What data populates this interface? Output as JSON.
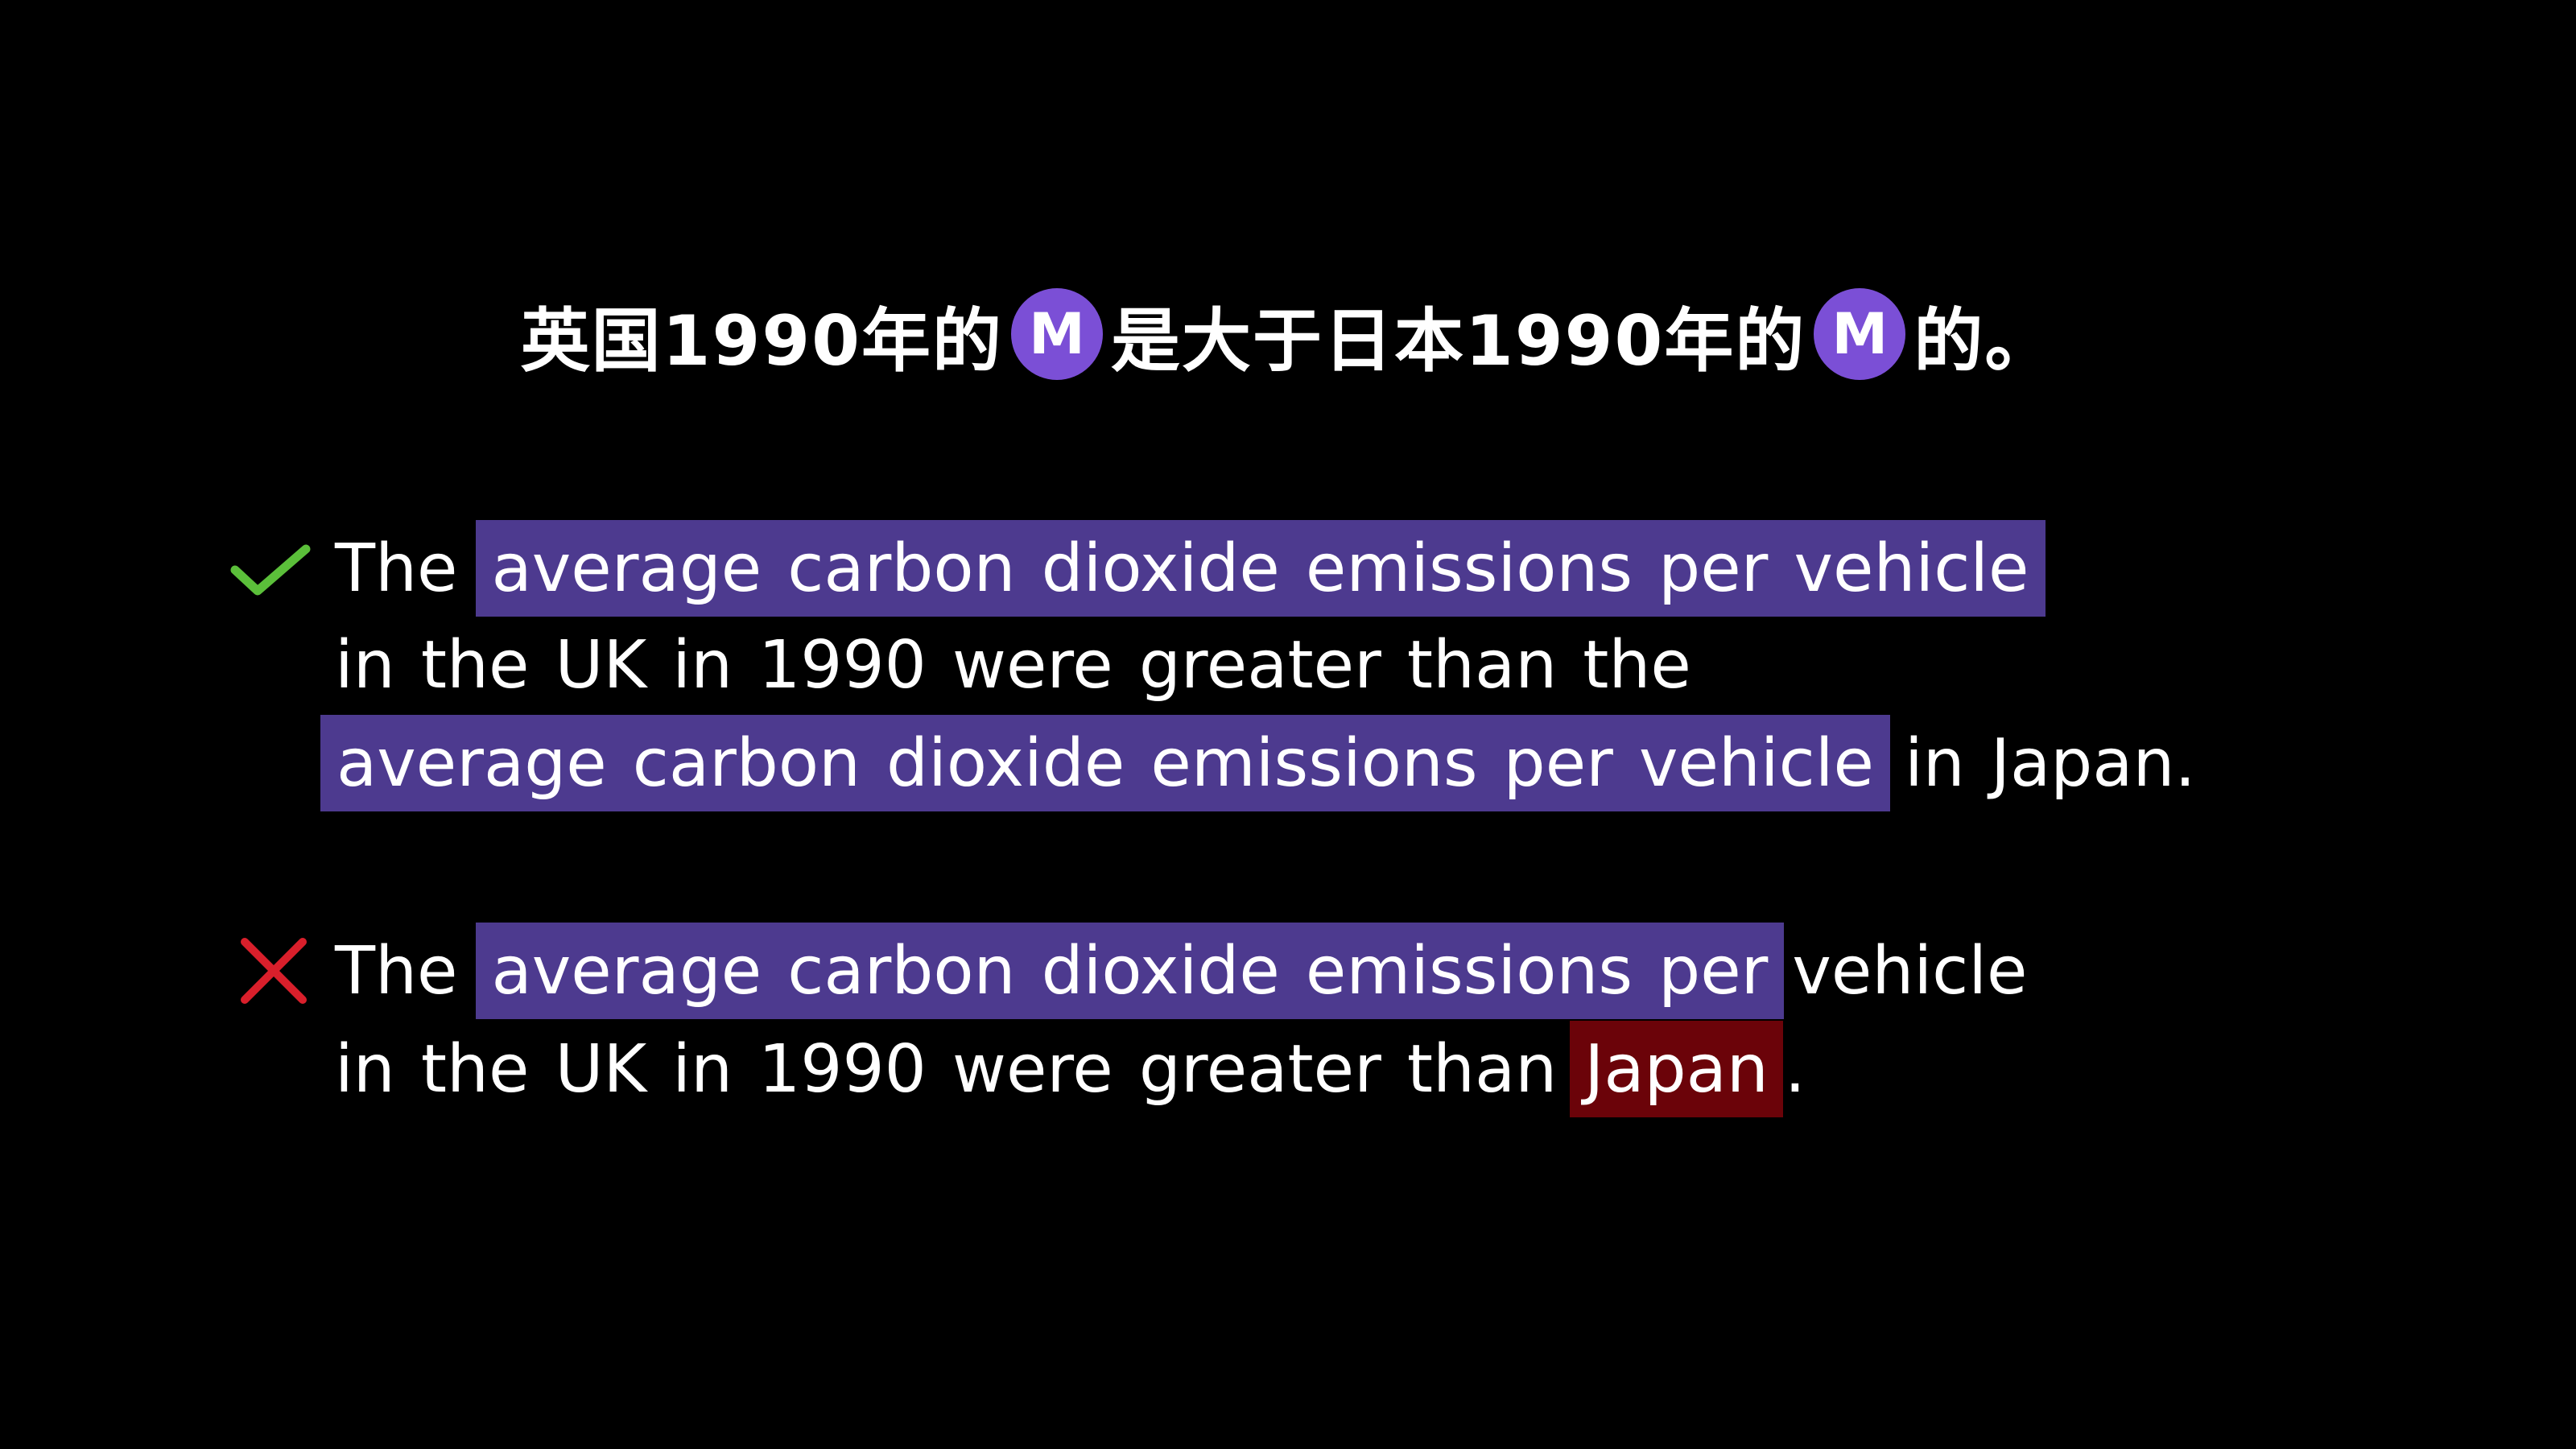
{
  "colors": {
    "background": "#000000",
    "text": "#ffffff",
    "badge": "#7b4fd6",
    "highlight": "#4d3a8f",
    "error_highlight": "#6b0309",
    "check": "#5bbf3a",
    "cross": "#d91f2b"
  },
  "title": {
    "part1": "英国1990年的",
    "badge1": "M",
    "part2": "是大于日本1990年的",
    "badge2": "M",
    "part3": "的。"
  },
  "correct_example": {
    "icon": "check-icon",
    "line1_prefix": "The",
    "line1_highlight": "average carbon dioxide emissions per vehicle",
    "line2": "in the UK in 1990 were greater than the",
    "line3_highlight": "average carbon dioxide emissions per vehicle",
    "line3_suffix": "in Japan."
  },
  "incorrect_example": {
    "icon": "cross-icon",
    "line1_prefix": "The",
    "line1_highlight": "average carbon dioxide emissions per",
    "line1_suffix": "vehicle",
    "line2_prefix": "in the UK in 1990 were greater than",
    "line2_error": "Japan",
    "line2_suffix": "."
  }
}
